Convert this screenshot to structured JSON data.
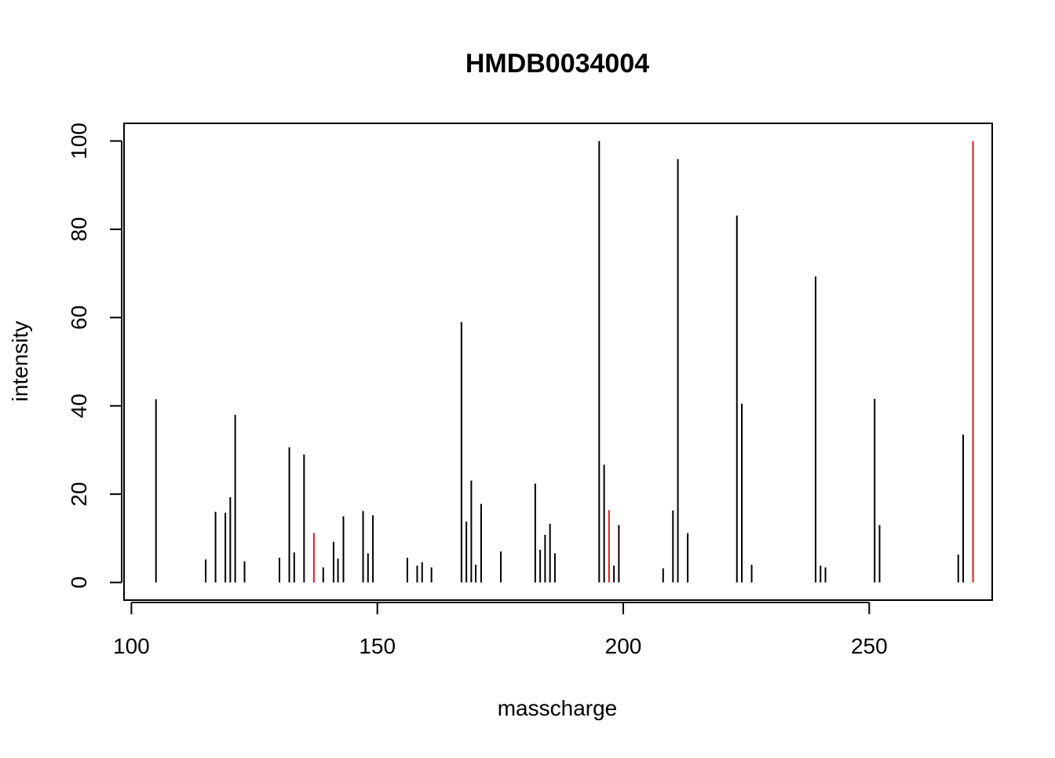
{
  "chart_data": {
    "type": "bar",
    "title": "HMDB0034004",
    "xlabel": "masscharge",
    "ylabel": "intensity",
    "xlim": [
      98.5,
      275
    ],
    "ylim": [
      -4,
      104
    ],
    "x_ticks": [
      100,
      150,
      200,
      250
    ],
    "y_ticks": [
      0,
      20,
      40,
      60,
      80,
      100
    ],
    "x_tick_labels": [
      "100",
      "150",
      "200",
      "250"
    ],
    "y_tick_labels": [
      "0",
      "20",
      "40",
      "60",
      "80",
      "100"
    ],
    "grid": false,
    "legend": "none",
    "colors": {
      "default": "#000000",
      "highlight": "#e31a1c"
    },
    "peaks": [
      {
        "x": 105.0,
        "y": 41.5,
        "highlight": false
      },
      {
        "x": 115.1,
        "y": 5.2,
        "highlight": false
      },
      {
        "x": 117.1,
        "y": 16.0,
        "highlight": false
      },
      {
        "x": 119.1,
        "y": 15.8,
        "highlight": false
      },
      {
        "x": 120.1,
        "y": 19.3,
        "highlight": false
      },
      {
        "x": 121.1,
        "y": 38.0,
        "highlight": false
      },
      {
        "x": 123.0,
        "y": 4.8,
        "highlight": false
      },
      {
        "x": 130.1,
        "y": 5.6,
        "highlight": false
      },
      {
        "x": 132.1,
        "y": 30.6,
        "highlight": false
      },
      {
        "x": 133.1,
        "y": 6.8,
        "highlight": false
      },
      {
        "x": 135.1,
        "y": 29.0,
        "highlight": false
      },
      {
        "x": 137.1,
        "y": 11.2,
        "highlight": true
      },
      {
        "x": 139.0,
        "y": 3.4,
        "highlight": false
      },
      {
        "x": 141.1,
        "y": 9.2,
        "highlight": false
      },
      {
        "x": 142.0,
        "y": 5.4,
        "highlight": false
      },
      {
        "x": 143.1,
        "y": 15.0,
        "highlight": false
      },
      {
        "x": 147.1,
        "y": 16.2,
        "highlight": false
      },
      {
        "x": 148.1,
        "y": 6.6,
        "highlight": false
      },
      {
        "x": 149.1,
        "y": 15.2,
        "highlight": false
      },
      {
        "x": 156.1,
        "y": 5.6,
        "highlight": false
      },
      {
        "x": 158.1,
        "y": 3.8,
        "highlight": false
      },
      {
        "x": 159.1,
        "y": 4.6,
        "highlight": false
      },
      {
        "x": 161.0,
        "y": 3.4,
        "highlight": false
      },
      {
        "x": 167.1,
        "y": 59.0,
        "highlight": false
      },
      {
        "x": 168.1,
        "y": 13.8,
        "highlight": false
      },
      {
        "x": 169.1,
        "y": 23.1,
        "highlight": false
      },
      {
        "x": 170.0,
        "y": 4.0,
        "highlight": false
      },
      {
        "x": 171.1,
        "y": 17.8,
        "highlight": false
      },
      {
        "x": 175.1,
        "y": 7.0,
        "highlight": false
      },
      {
        "x": 182.1,
        "y": 22.4,
        "highlight": false
      },
      {
        "x": 183.1,
        "y": 7.4,
        "highlight": false
      },
      {
        "x": 184.1,
        "y": 10.8,
        "highlight": false
      },
      {
        "x": 185.1,
        "y": 13.3,
        "highlight": false
      },
      {
        "x": 186.1,
        "y": 6.6,
        "highlight": false
      },
      {
        "x": 195.1,
        "y": 100.0,
        "highlight": false
      },
      {
        "x": 196.1,
        "y": 26.7,
        "highlight": false
      },
      {
        "x": 197.1,
        "y": 16.4,
        "highlight": true
      },
      {
        "x": 198.1,
        "y": 3.8,
        "highlight": false
      },
      {
        "x": 199.1,
        "y": 13.0,
        "highlight": false
      },
      {
        "x": 208.1,
        "y": 3.2,
        "highlight": false
      },
      {
        "x": 210.1,
        "y": 16.3,
        "highlight": false
      },
      {
        "x": 211.1,
        "y": 95.9,
        "highlight": false
      },
      {
        "x": 213.1,
        "y": 11.2,
        "highlight": false
      },
      {
        "x": 223.1,
        "y": 83.1,
        "highlight": false
      },
      {
        "x": 224.1,
        "y": 40.5,
        "highlight": false
      },
      {
        "x": 226.1,
        "y": 4.0,
        "highlight": false
      },
      {
        "x": 239.1,
        "y": 69.3,
        "highlight": false
      },
      {
        "x": 240.1,
        "y": 3.8,
        "highlight": false
      },
      {
        "x": 241.1,
        "y": 3.4,
        "highlight": false
      },
      {
        "x": 251.1,
        "y": 41.6,
        "highlight": false
      },
      {
        "x": 252.1,
        "y": 13.0,
        "highlight": false
      },
      {
        "x": 268.1,
        "y": 6.3,
        "highlight": false
      },
      {
        "x": 269.1,
        "y": 33.5,
        "highlight": false
      },
      {
        "x": 271.1,
        "y": 100.0,
        "highlight": true
      }
    ]
  }
}
